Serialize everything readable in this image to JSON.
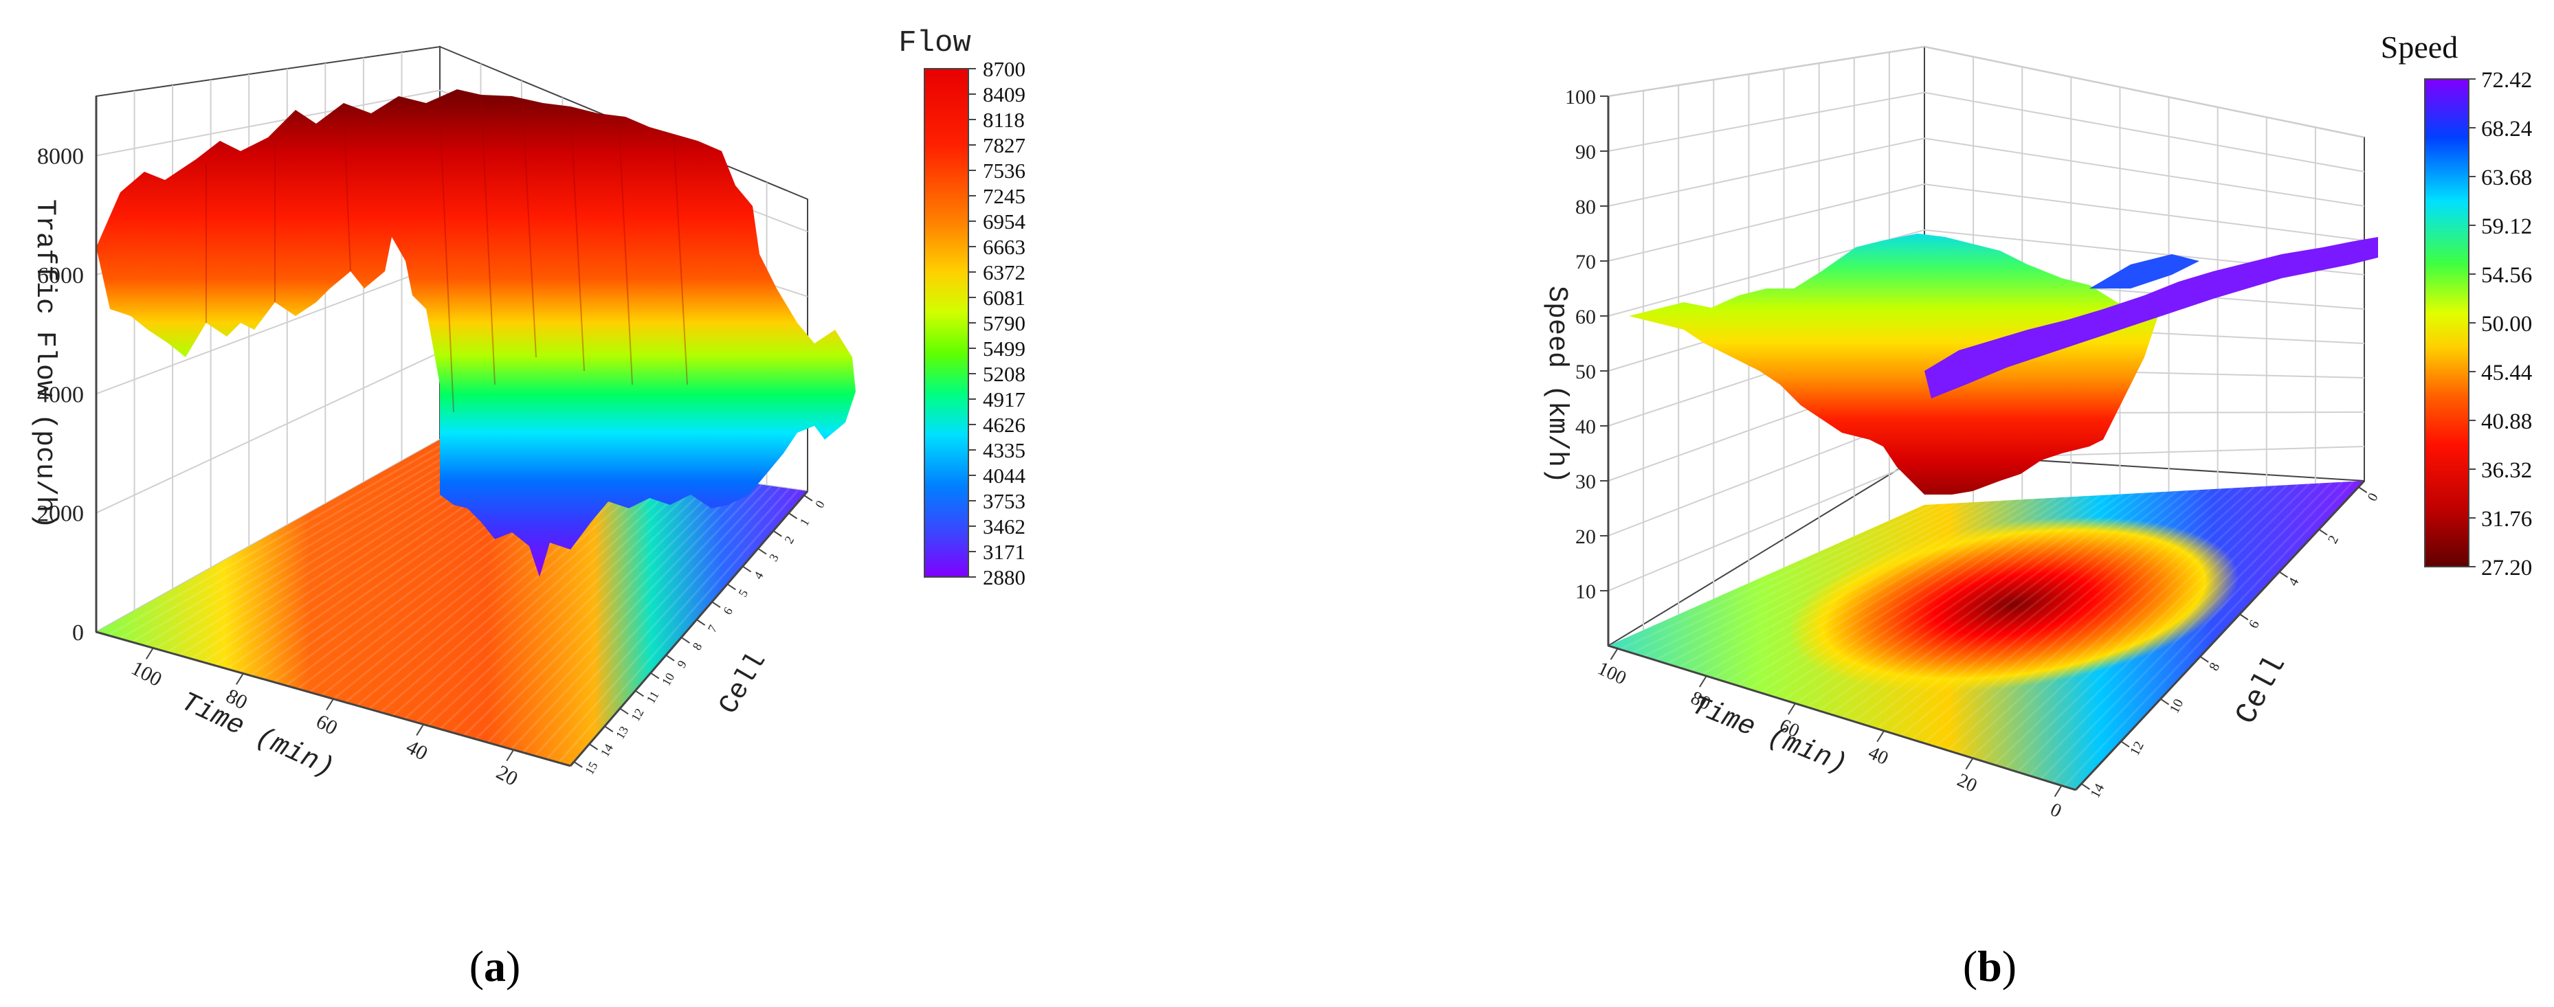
{
  "panels": {
    "a": {
      "label_open": "(",
      "label_letter": "a",
      "label_close": ")"
    },
    "b": {
      "label_open": "(",
      "label_letter": "b",
      "label_close": ")"
    }
  },
  "chart_data": [
    {
      "type": "surface3d",
      "colorbar_title": "Flow",
      "zlabel": "Traffic Flow (pcu/h)",
      "xlabel": "Time (min)",
      "ylabel": "Cell",
      "z_ticks": [
        "0",
        "2000",
        "4000",
        "6000",
        "8000"
      ],
      "time_ticks": [
        "100",
        "80",
        "60",
        "40",
        "20"
      ],
      "cell_ticks": [
        "0",
        "1",
        "2",
        "3",
        "4",
        "5",
        "6",
        "7",
        "8",
        "9",
        "10",
        "11",
        "12",
        "13",
        "14",
        "15"
      ],
      "zlim": [
        0,
        9000
      ],
      "colorbar_ticks": [
        "8700",
        "8409",
        "8118",
        "7827",
        "7536",
        "7245",
        "6954",
        "6663",
        "6372",
        "6081",
        "5790",
        "5499",
        "5208",
        "4917",
        "4626",
        "4335",
        "4044",
        "3753",
        "3462",
        "3171",
        "2880"
      ],
      "colorscale": [
        "#8000ff",
        "#4040ff",
        "#0080ff",
        "#00e0ff",
        "#00ff80",
        "#60ff00",
        "#d0ff00",
        "#ffd000",
        "#ff8000",
        "#ff2000",
        "#e80000"
      ],
      "surface_profile": {
        "time": [
          110,
          100,
          90,
          80,
          70,
          60,
          50,
          40,
          30,
          20,
          10,
          0
        ],
        "flow_min": [
          6600,
          6300,
          5800,
          5200,
          5600,
          6300,
          4000,
          2600,
          2800,
          3000,
          3800,
          4300
        ],
        "flow_max": [
          7200,
          7800,
          8200,
          8600,
          8500,
          8700,
          8700,
          8600,
          8500,
          8400,
          7000,
          6500
        ]
      }
    },
    {
      "type": "surface3d",
      "colorbar_title": "Speed",
      "zlabel": "Speed (km/h)",
      "xlabel": "Time (min)",
      "ylabel": "Cell",
      "z_ticks": [
        "10",
        "20",
        "30",
        "40",
        "50",
        "60",
        "70",
        "80",
        "90",
        "100"
      ],
      "time_ticks": [
        "100",
        "80",
        "60",
        "40",
        "20",
        "0"
      ],
      "cell_ticks": [
        "0",
        "2",
        "4",
        "6",
        "8",
        "10",
        "12",
        "14"
      ],
      "zlim": [
        0,
        100
      ],
      "colorbar_ticks": [
        "72.42",
        "68.24",
        "63.68",
        "59.12",
        "54.56",
        "50.00",
        "45.44",
        "40.88",
        "36.32",
        "31.76",
        "27.20"
      ],
      "colorscale": [
        "#8000ff",
        "#0040ff",
        "#00e0ff",
        "#40ff40",
        "#e0ff00",
        "#ffd000",
        "#ff6000",
        "#ff1000",
        "#c00000",
        "#600000"
      ],
      "surface_profile": {
        "time": [
          110,
          100,
          90,
          80,
          70,
          60,
          50,
          40,
          30,
          20,
          10,
          0
        ],
        "speed_min": [
          60,
          58,
          50,
          40,
          32,
          30,
          35,
          45,
          62,
          66,
          68,
          70
        ],
        "speed_max": [
          62,
          64,
          66,
          68,
          62,
          55,
          60,
          68,
          70,
          71,
          72,
          72
        ]
      }
    }
  ]
}
